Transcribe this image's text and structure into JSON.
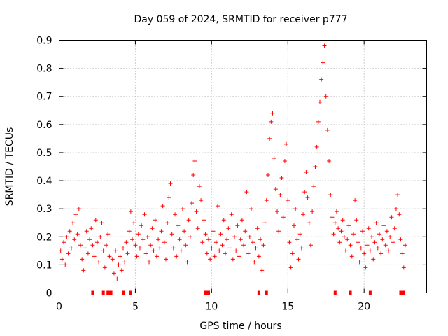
{
  "chart_data": {
    "type": "scatter",
    "title": "Day 059 of 2024, SRMTID for receiver p777",
    "xlabel": "GPS time / hours",
    "ylabel": "SRMTID / TECUs",
    "xlim": [
      0,
      24.1
    ],
    "ylim": [
      0,
      0.9
    ],
    "xticks": [
      0,
      5,
      10,
      15,
      20
    ],
    "xtick_labels": [
      "0",
      "5",
      "10",
      "15",
      "20"
    ],
    "yticks": [
      0,
      0.1,
      0.2,
      0.3,
      0.4,
      0.5,
      0.6,
      0.7,
      0.8,
      0.9
    ],
    "ytick_labels": [
      "0",
      "0.1",
      "0.2",
      "0.3",
      "0.4",
      "0.5",
      "0.6",
      "0.7",
      "0.8",
      "0.9"
    ],
    "grid": true,
    "marker": "+",
    "color": "#ff0000",
    "series": [
      {
        "name": "SRMTID",
        "points": [
          [
            0.1,
            0.15
          ],
          [
            0.2,
            0.12
          ],
          [
            0.3,
            0.18
          ],
          [
            0.4,
            0.1
          ],
          [
            0.5,
            0.2
          ],
          [
            0.6,
            0.14
          ],
          [
            0.7,
            0.22
          ],
          [
            0.8,
            0.16
          ],
          [
            0.9,
            0.25
          ],
          [
            1.0,
            0.19
          ],
          [
            1.1,
            0.28
          ],
          [
            1.2,
            0.21
          ],
          [
            1.3,
            0.3
          ],
          [
            1.4,
            0.17
          ],
          [
            1.5,
            0.12
          ],
          [
            1.6,
            0.08
          ],
          [
            1.7,
            0.16
          ],
          [
            1.8,
            0.22
          ],
          [
            1.9,
            0.14
          ],
          [
            2.0,
            0.19
          ],
          [
            2.1,
            0.23
          ],
          [
            2.2,
            0.17
          ],
          [
            2.3,
            0.13
          ],
          [
            2.4,
            0.26
          ],
          [
            2.5,
            0.18
          ],
          [
            2.6,
            0.11
          ],
          [
            2.7,
            0.2
          ],
          [
            2.8,
            0.25
          ],
          [
            2.9,
            0.15
          ],
          [
            3.0,
            0.09
          ],
          [
            3.1,
            0.17
          ],
          [
            3.2,
            0.21
          ],
          [
            3.3,
            0.13
          ],
          [
            3.5,
            0.12
          ],
          [
            3.6,
            0.07
          ],
          [
            3.7,
            0.15
          ],
          [
            3.8,
            0.05
          ],
          [
            3.9,
            0.1
          ],
          [
            4.0,
            0.13
          ],
          [
            4.1,
            0.08
          ],
          [
            4.2,
            0.16
          ],
          [
            4.3,
            0.11
          ],
          [
            4.4,
            0.18
          ],
          [
            4.5,
            0.14
          ],
          [
            4.6,
            0.22
          ],
          [
            4.7,
            0.29
          ],
          [
            4.8,
            0.19
          ],
          [
            4.9,
            0.25
          ],
          [
            5.0,
            0.17
          ],
          [
            5.1,
            0.13
          ],
          [
            5.2,
            0.21
          ],
          [
            5.3,
            0.16
          ],
          [
            5.4,
            0.24
          ],
          [
            5.5,
            0.19
          ],
          [
            5.6,
            0.28
          ],
          [
            5.7,
            0.14
          ],
          [
            5.8,
            0.2
          ],
          [
            5.9,
            0.11
          ],
          [
            6.0,
            0.17
          ],
          [
            6.1,
            0.23
          ],
          [
            6.2,
            0.15
          ],
          [
            6.3,
            0.26
          ],
          [
            6.4,
            0.13
          ],
          [
            6.5,
            0.19
          ],
          [
            6.6,
            0.16
          ],
          [
            6.7,
            0.22
          ],
          [
            6.8,
            0.31
          ],
          [
            6.9,
            0.18
          ],
          [
            7.0,
            0.12
          ],
          [
            7.1,
            0.25
          ],
          [
            7.2,
            0.34
          ],
          [
            7.3,
            0.39
          ],
          [
            7.4,
            0.21
          ],
          [
            7.5,
            0.16
          ],
          [
            7.6,
            0.28
          ],
          [
            7.7,
            0.13
          ],
          [
            7.8,
            0.24
          ],
          [
            7.9,
            0.19
          ],
          [
            8.0,
            0.15
          ],
          [
            8.1,
            0.3
          ],
          [
            8.2,
            0.22
          ],
          [
            8.3,
            0.17
          ],
          [
            8.4,
            0.11
          ],
          [
            8.5,
            0.26
          ],
          [
            8.6,
            0.2
          ],
          [
            8.7,
            0.32
          ],
          [
            8.8,
            0.42
          ],
          [
            8.9,
            0.47
          ],
          [
            9.0,
            0.29
          ],
          [
            9.1,
            0.23
          ],
          [
            9.2,
            0.38
          ],
          [
            9.3,
            0.33
          ],
          [
            9.4,
            0.18
          ],
          [
            9.5,
            0.26
          ],
          [
            9.6,
            0.21
          ],
          [
            9.7,
            0.14
          ],
          [
            9.8,
            0.19
          ],
          [
            9.9,
            0.12
          ],
          [
            10.0,
            0.16
          ],
          [
            10.1,
            0.22
          ],
          [
            10.2,
            0.13
          ],
          [
            10.3,
            0.18
          ],
          [
            10.4,
            0.31
          ],
          [
            10.5,
            0.15
          ],
          [
            10.6,
            0.21
          ],
          [
            10.7,
            0.17
          ],
          [
            10.8,
            0.26
          ],
          [
            10.9,
            0.14
          ],
          [
            11.0,
            0.19
          ],
          [
            11.1,
            0.23
          ],
          [
            11.2,
            0.16
          ],
          [
            11.3,
            0.28
          ],
          [
            11.4,
            0.12
          ],
          [
            11.5,
            0.2
          ],
          [
            11.6,
            0.15
          ],
          [
            11.7,
            0.24
          ],
          [
            11.8,
            0.13
          ],
          [
            11.9,
            0.19
          ],
          [
            12.0,
            0.26
          ],
          [
            12.1,
            0.17
          ],
          [
            12.2,
            0.22
          ],
          [
            12.3,
            0.36
          ],
          [
            12.4,
            0.14
          ],
          [
            12.5,
            0.2
          ],
          [
            12.6,
            0.3
          ],
          [
            12.7,
            0.18
          ],
          [
            12.8,
            0.11
          ],
          [
            12.9,
            0.16
          ],
          [
            13.0,
            0.23
          ],
          [
            13.1,
            0.13
          ],
          [
            13.2,
            0.19
          ],
          [
            13.3,
            0.08
          ],
          [
            13.4,
            0.17
          ],
          [
            13.5,
            0.25
          ],
          [
            13.6,
            0.33
          ],
          [
            13.7,
            0.42
          ],
          [
            13.8,
            0.55
          ],
          [
            13.9,
            0.61
          ],
          [
            14.0,
            0.64
          ],
          [
            14.1,
            0.48
          ],
          [
            14.2,
            0.37
          ],
          [
            14.3,
            0.29
          ],
          [
            14.4,
            0.22
          ],
          [
            14.5,
            0.35
          ],
          [
            14.6,
            0.41
          ],
          [
            14.7,
            0.27
          ],
          [
            14.8,
            0.47
          ],
          [
            14.9,
            0.53
          ],
          [
            15.0,
            0.33
          ],
          [
            15.1,
            0.18
          ],
          [
            15.2,
            0.09
          ],
          [
            15.3,
            0.14
          ],
          [
            15.4,
            0.24
          ],
          [
            15.5,
            0.3
          ],
          [
            15.6,
            0.19
          ],
          [
            15.7,
            0.12
          ],
          [
            15.8,
            0.21
          ],
          [
            15.9,
            0.16
          ],
          [
            16.0,
            0.28
          ],
          [
            16.1,
            0.36
          ],
          [
            16.2,
            0.43
          ],
          [
            16.3,
            0.34
          ],
          [
            16.4,
            0.25
          ],
          [
            16.5,
            0.17
          ],
          [
            16.6,
            0.29
          ],
          [
            16.7,
            0.38
          ],
          [
            16.8,
            0.45
          ],
          [
            16.9,
            0.52
          ],
          [
            17.0,
            0.61
          ],
          [
            17.1,
            0.68
          ],
          [
            17.2,
            0.76
          ],
          [
            17.3,
            0.82
          ],
          [
            17.4,
            0.88
          ],
          [
            17.5,
            0.7
          ],
          [
            17.6,
            0.58
          ],
          [
            17.7,
            0.47
          ],
          [
            17.8,
            0.35
          ],
          [
            17.9,
            0.27
          ],
          [
            18.0,
            0.21
          ],
          [
            18.1,
            0.25
          ],
          [
            18.2,
            0.29
          ],
          [
            18.3,
            0.23
          ],
          [
            18.4,
            0.18
          ],
          [
            18.5,
            0.22
          ],
          [
            18.6,
            0.26
          ],
          [
            18.7,
            0.2
          ],
          [
            18.8,
            0.15
          ],
          [
            18.9,
            0.19
          ],
          [
            19.0,
            0.24
          ],
          [
            19.1,
            0.17
          ],
          [
            19.2,
            0.13
          ],
          [
            19.3,
            0.21
          ],
          [
            19.4,
            0.33
          ],
          [
            19.5,
            0.26
          ],
          [
            19.6,
            0.18
          ],
          [
            19.7,
            0.11
          ],
          [
            19.8,
            0.16
          ],
          [
            19.9,
            0.22
          ],
          [
            20.0,
            0.14
          ],
          [
            20.1,
            0.09
          ],
          [
            20.2,
            0.17
          ],
          [
            20.3,
            0.23
          ],
          [
            20.4,
            0.15
          ],
          [
            20.5,
            0.2
          ],
          [
            20.6,
            0.12
          ],
          [
            20.7,
            0.18
          ],
          [
            20.8,
            0.25
          ],
          [
            20.9,
            0.16
          ],
          [
            21.0,
            0.21
          ],
          [
            21.1,
            0.14
          ],
          [
            21.2,
            0.19
          ],
          [
            21.3,
            0.24
          ],
          [
            21.4,
            0.17
          ],
          [
            21.5,
            0.22
          ],
          [
            21.6,
            0.15
          ],
          [
            21.7,
            0.2
          ],
          [
            21.8,
            0.27
          ],
          [
            21.9,
            0.18
          ],
          [
            22.0,
            0.23
          ],
          [
            22.1,
            0.3
          ],
          [
            22.2,
            0.35
          ],
          [
            22.3,
            0.28
          ],
          [
            22.4,
            0.19
          ],
          [
            22.5,
            0.14
          ],
          [
            22.6,
            0.09
          ],
          [
            22.7,
            0.17
          ]
        ],
        "zero_points": [
          2.2,
          2.9,
          3.2,
          3.3,
          3.4,
          4.2,
          4.7,
          9.6,
          9.7,
          9.8,
          13.1,
          13.6,
          18.1,
          19.1,
          20.4,
          22.4,
          22.5,
          22.6
        ]
      }
    ]
  }
}
